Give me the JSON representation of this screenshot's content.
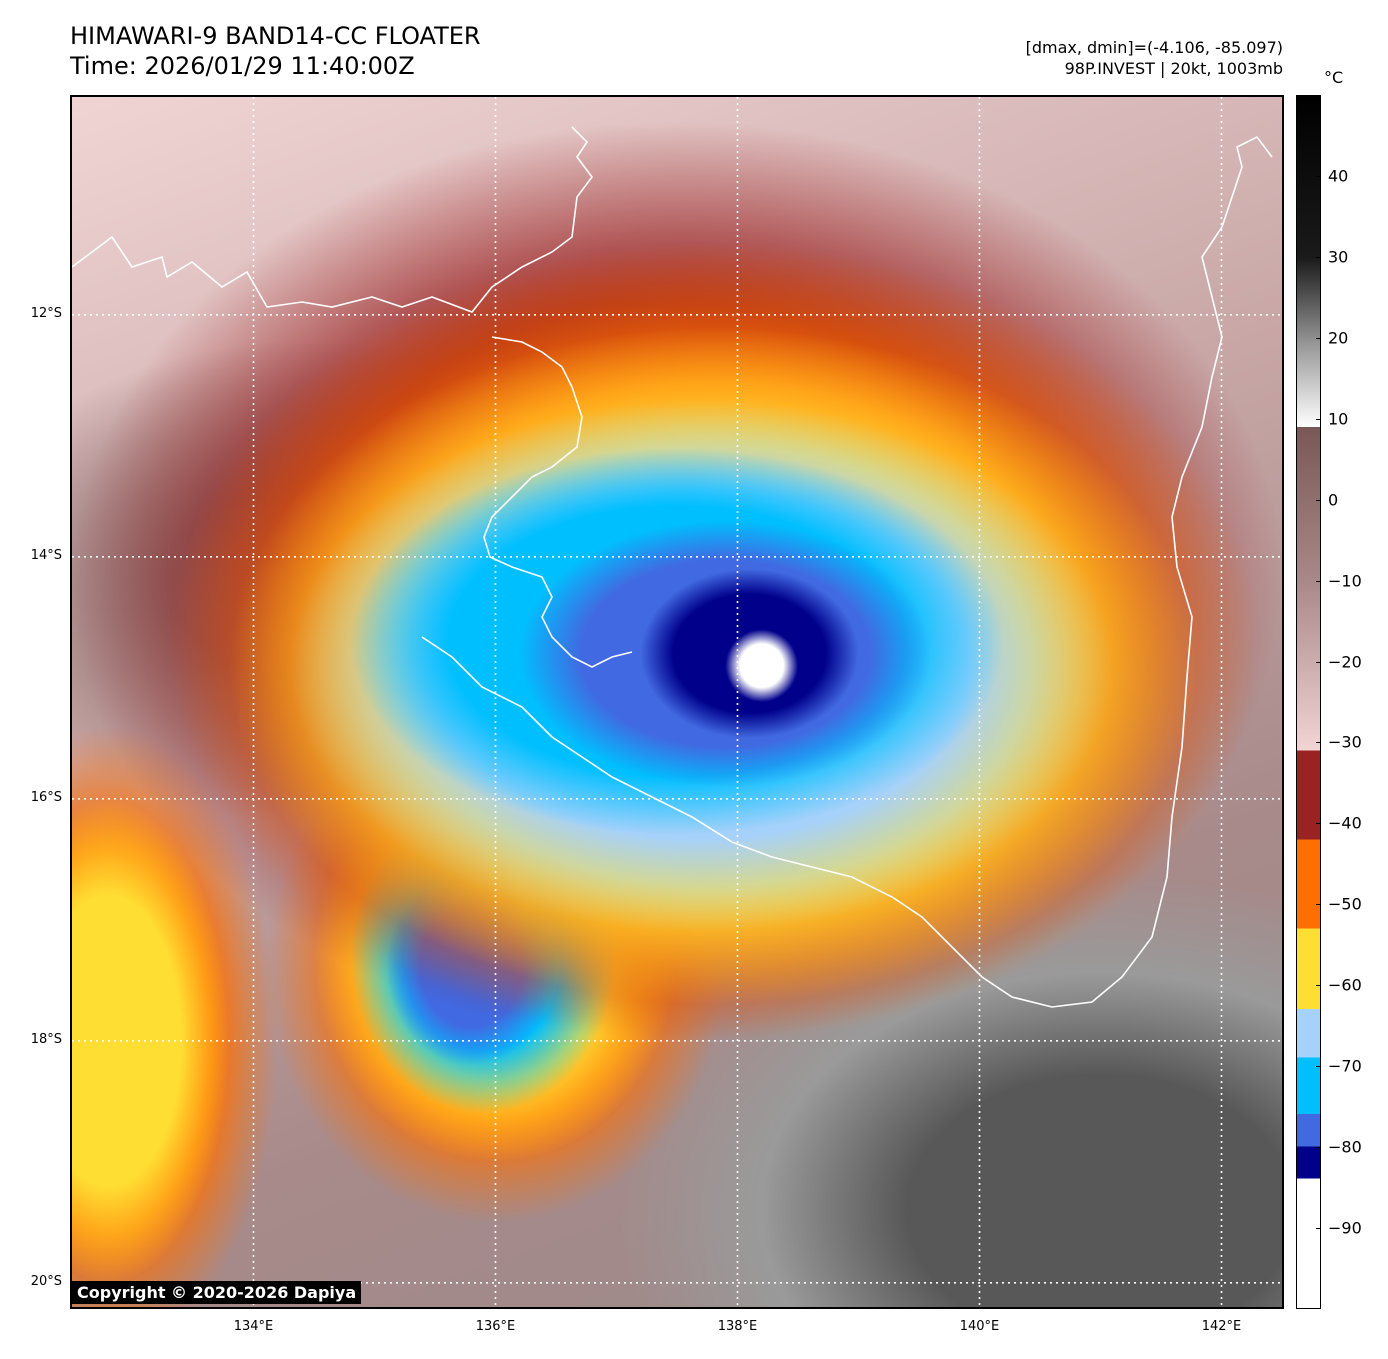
{
  "header": {
    "title_line1": "HIMAWARI-9 BAND14-CC FLOATER",
    "title_line2": "Time: 2026/01/29 11:40:00Z",
    "range_text": "[dmax, dmin]=(-4.106, -85.097)",
    "storm_text": "98P.INVEST | 20kt, 1003mb"
  },
  "map": {
    "lat_labels": [
      "12°S",
      "14°S",
      "16°S",
      "18°S",
      "20°S"
    ],
    "lat_values": [
      -12,
      -14,
      -16,
      -18,
      -20
    ],
    "lon_labels": [
      "134°E",
      "136°E",
      "138°E",
      "140°E",
      "142°E"
    ],
    "lon_values": [
      134,
      136,
      138,
      140,
      142
    ],
    "lon_range": [
      132.5,
      142.5
    ],
    "lat_range": [
      -10.2,
      -20.2
    ],
    "grid_color": "#ffffff",
    "coastline_color": "#ffffff"
  },
  "copyright": "Copyright © 2020-2026 Dapiya",
  "colorbar": {
    "unit": "°C",
    "range": [
      -100,
      50
    ],
    "tick_labels": [
      "40",
      "30",
      "20",
      "10",
      "0",
      "−10",
      "−20",
      "−30",
      "−40",
      "−50",
      "−60",
      "−70",
      "−80",
      "−90"
    ],
    "tick_values": [
      40,
      30,
      20,
      10,
      0,
      -10,
      -20,
      -30,
      -40,
      -50,
      -60,
      -70,
      -80,
      -90
    ],
    "stops": [
      {
        "v": 50,
        "color": "#000000"
      },
      {
        "v": 30,
        "color": "#1a1a1a"
      },
      {
        "v": 19,
        "color": "#9a9a9a"
      },
      {
        "v": 9,
        "color": "#ffffff"
      },
      {
        "v": 9,
        "color": "#7a5858"
      },
      {
        "v": -10,
        "color": "#a88888"
      },
      {
        "v": -31,
        "color": "#f2d4d4"
      },
      {
        "v": -31,
        "color": "#9b2222"
      },
      {
        "v": -42,
        "color": "#9b2222"
      },
      {
        "v": -42,
        "color": "#ff6f00"
      },
      {
        "v": -53,
        "color": "#ff6f00"
      },
      {
        "v": -53,
        "color": "#ffde33"
      },
      {
        "v": -63,
        "color": "#ffde33"
      },
      {
        "v": -63,
        "color": "#a6d1fa"
      },
      {
        "v": -69,
        "color": "#a6d1fa"
      },
      {
        "v": -69,
        "color": "#00bfff"
      },
      {
        "v": -76,
        "color": "#00bfff"
      },
      {
        "v": -76,
        "color": "#4169e1"
      },
      {
        "v": -80,
        "color": "#4169e1"
      },
      {
        "v": -80,
        "color": "#00008b"
      },
      {
        "v": -84,
        "color": "#00008b"
      },
      {
        "v": -84,
        "color": "#ffffff"
      },
      {
        "v": -100,
        "color": "#ffffff"
      }
    ]
  }
}
